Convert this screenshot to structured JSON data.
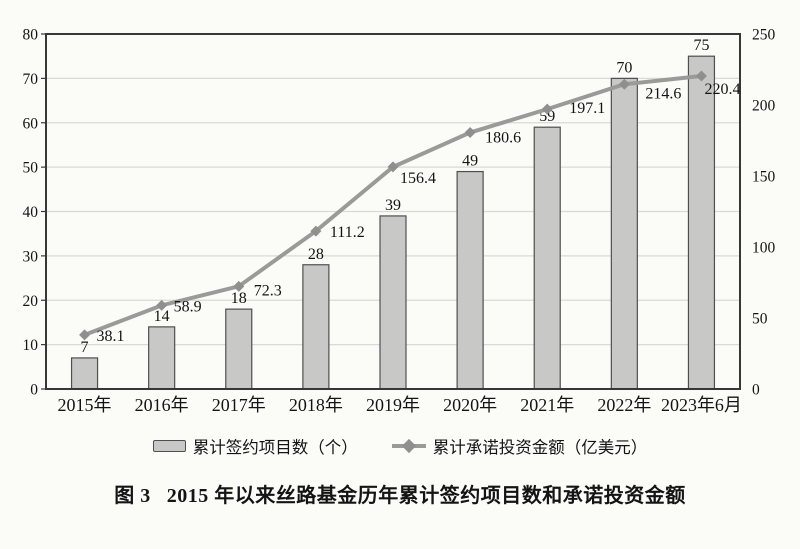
{
  "figure": {
    "caption_label": "图 3",
    "caption_text": "2015 年以来丝路基金历年累计签约项目数和承诺投资金额"
  },
  "legend": {
    "bar_label": "累计签约项目数（个）",
    "line_label": "累计承诺投资金额（亿美元）"
  },
  "colors": {
    "background": "#fbfbf8",
    "bar_fill": "#c8c9c7",
    "bar_border": "#4f4f4f",
    "line": "#9a9a98",
    "marker": "#8f908e",
    "grid": "#d9d9d6",
    "axis": "#373737",
    "text": "#141414"
  },
  "chart_data": {
    "type": "bar",
    "subtype": "bar+line combo, dual axis",
    "title": "图 3 2015 年以来丝路基金历年累计签约项目数和承诺投资金额",
    "categories": [
      "2015年",
      "2016年",
      "2017年",
      "2018年",
      "2019年",
      "2020年",
      "2021年",
      "2022年",
      "2023年6月"
    ],
    "series": [
      {
        "name": "累计签约项目数（个）",
        "type": "bar",
        "axis": "left",
        "values": [
          7,
          14,
          18,
          28,
          39,
          49,
          59,
          70,
          75
        ]
      },
      {
        "name": "累计承诺投资金额（亿美元）",
        "type": "line",
        "axis": "right",
        "values": [
          38.1,
          58.9,
          72.3,
          111.2,
          156.4,
          180.6,
          197.1,
          214.6,
          220.4
        ]
      }
    ],
    "left_axis": {
      "min": 0,
      "max": 80,
      "step": 10,
      "ticks": [
        0,
        10,
        20,
        30,
        40,
        50,
        60,
        70,
        80
      ]
    },
    "right_axis": {
      "min": 0,
      "max": 250,
      "step": 50,
      "ticks": [
        0,
        50,
        100,
        150,
        200,
        250
      ]
    },
    "grid": "horizontal",
    "legend_position": "bottom",
    "data_labels": "shown for both series"
  }
}
